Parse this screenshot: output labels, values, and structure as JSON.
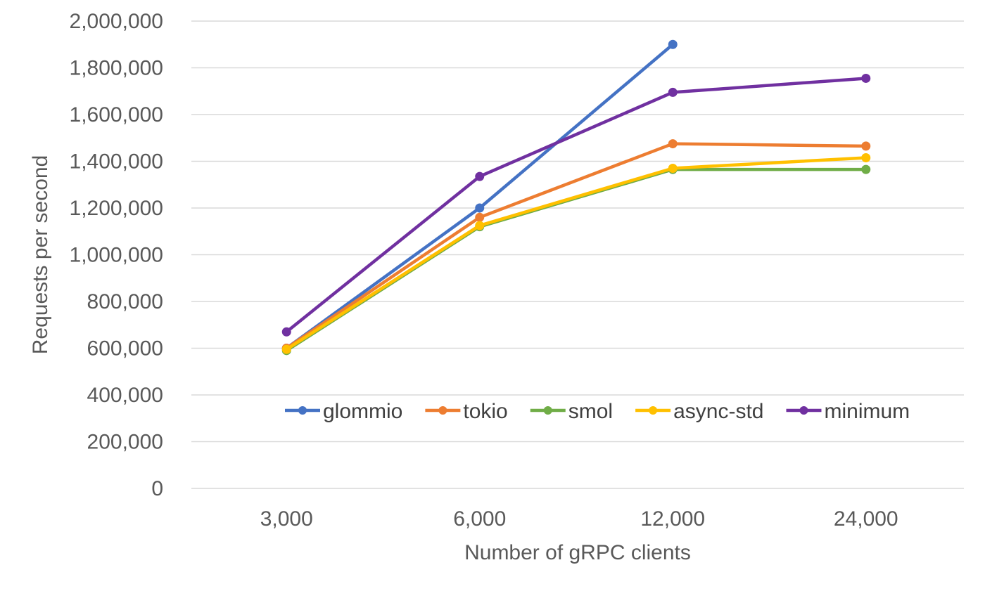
{
  "chart_data": {
    "type": "line",
    "title": "",
    "xlabel": "Number of gRPC clients",
    "ylabel": "Requests per second",
    "categories": [
      "3,000",
      "6,000",
      "12,000",
      "24,000"
    ],
    "ylim": [
      0,
      2000000
    ],
    "y_ticks": [
      0,
      200000,
      400000,
      600000,
      800000,
      1000000,
      1200000,
      1400000,
      1600000,
      1800000,
      2000000
    ],
    "y_tick_labels": [
      "0",
      "200,000",
      "400,000",
      "600,000",
      "800,000",
      "1,000,000",
      "1,200,000",
      "1,400,000",
      "1,600,000",
      "1,800,000",
      "2,000,000"
    ],
    "grid": true,
    "legend_position": "inside-bottom",
    "series": [
      {
        "name": "glommio",
        "color": "#4472C4",
        "values": [
          600000,
          1200000,
          1900000,
          null
        ]
      },
      {
        "name": "tokio",
        "color": "#ED7D31",
        "values": [
          600000,
          1160000,
          1475000,
          1465000
        ]
      },
      {
        "name": "smol",
        "color": "#70AD47",
        "values": [
          590000,
          1120000,
          1365000,
          1365000
        ]
      },
      {
        "name": "async-std",
        "color": "#FFC000",
        "values": [
          595000,
          1125000,
          1370000,
          1415000
        ]
      },
      {
        "name": "minimum",
        "color": "#7030A0",
        "values": [
          670000,
          1335000,
          1695000,
          1755000
        ]
      }
    ]
  }
}
